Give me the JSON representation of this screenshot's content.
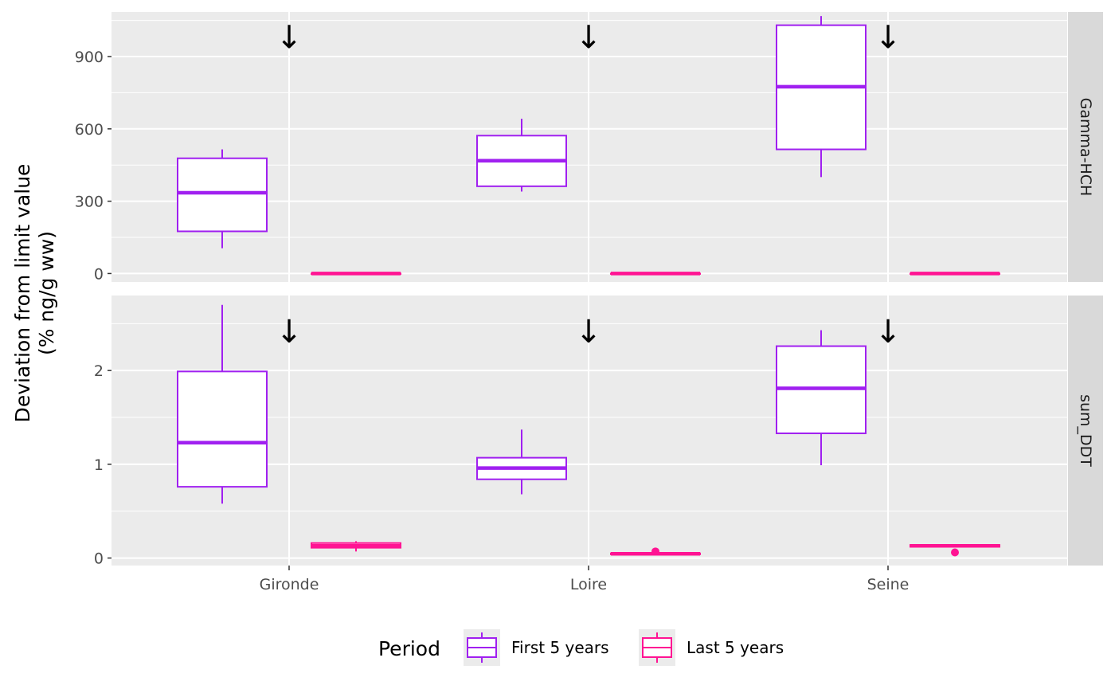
{
  "chart_data": {
    "type": "box",
    "ylabel_lines": [
      "Deviation from limit value",
      "(% ng/g ww)"
    ],
    "categories": [
      "Gironde",
      "Loire",
      "Seine"
    ],
    "legend": {
      "title": "Period",
      "placement": "bottom",
      "entries": [
        {
          "name": "First 5 years",
          "color": "#A020F0"
        },
        {
          "name": "Last 5 years",
          "color": "#FF1493"
        }
      ]
    },
    "arrow_glyph": "↓",
    "panels": [
      {
        "strip": "Gamma-HCH",
        "ylim": [
          -35,
          1085
        ],
        "yticks": [
          0,
          300,
          600,
          900
        ],
        "ytick_labels": [
          "0",
          "300",
          "600",
          "900"
        ],
        "arrow_y": 935,
        "boxes": [
          {
            "category": "Gironde",
            "series": "First 5 years",
            "min": 105,
            "q1": 175,
            "median": 335,
            "q3": 478,
            "max": 515,
            "outliers": []
          },
          {
            "category": "Gironde",
            "series": "Last 5 years",
            "min": 0,
            "q1": 0,
            "median": 0,
            "q3": 0,
            "max": 0,
            "outliers": []
          },
          {
            "category": "Loire",
            "series": "First 5 years",
            "min": 340,
            "q1": 362,
            "median": 468,
            "q3": 572,
            "max": 642,
            "outliers": []
          },
          {
            "category": "Loire",
            "series": "Last 5 years",
            "min": 0,
            "q1": 0,
            "median": 0,
            "q3": 0,
            "max": 0,
            "outliers": []
          },
          {
            "category": "Seine",
            "series": "First 5 years",
            "min": 400,
            "q1": 515,
            "median": 775,
            "q3": 1030,
            "max": 1068,
            "outliers": []
          },
          {
            "category": "Seine",
            "series": "Last 5 years",
            "min": 0,
            "q1": 0,
            "median": 0,
            "q3": 0,
            "max": 0,
            "outliers": []
          }
        ]
      },
      {
        "strip": "sum_DDT",
        "ylim": [
          -0.08,
          2.8
        ],
        "yticks": [
          0,
          1,
          2
        ],
        "ytick_labels": [
          "0",
          "1",
          "2"
        ],
        "arrow_y": 2.3,
        "boxes": [
          {
            "category": "Gironde",
            "series": "First 5 years",
            "min": 0.58,
            "q1": 0.76,
            "median": 1.23,
            "q3": 1.99,
            "max": 2.7,
            "outliers": []
          },
          {
            "category": "Gironde",
            "series": "Last 5 years",
            "min": 0.07,
            "q1": 0.11,
            "median": 0.13,
            "q3": 0.16,
            "max": 0.18,
            "outliers": []
          },
          {
            "category": "Loire",
            "series": "First 5 years",
            "min": 0.68,
            "q1": 0.84,
            "median": 0.96,
            "q3": 1.07,
            "max": 1.37,
            "outliers": []
          },
          {
            "category": "Loire",
            "series": "Last 5 years",
            "min": 0.04,
            "q1": 0.04,
            "median": 0.045,
            "q3": 0.05,
            "max": 0.05,
            "outliers": [
              0.07
            ]
          },
          {
            "category": "Seine",
            "series": "First 5 years",
            "min": 0.99,
            "q1": 1.33,
            "median": 1.81,
            "q3": 2.26,
            "max": 2.43,
            "outliers": []
          },
          {
            "category": "Seine",
            "series": "Last 5 years",
            "min": 0.12,
            "q1": 0.12,
            "median": 0.13,
            "q3": 0.14,
            "max": 0.14,
            "outliers": [
              0.06
            ]
          }
        ]
      }
    ]
  }
}
